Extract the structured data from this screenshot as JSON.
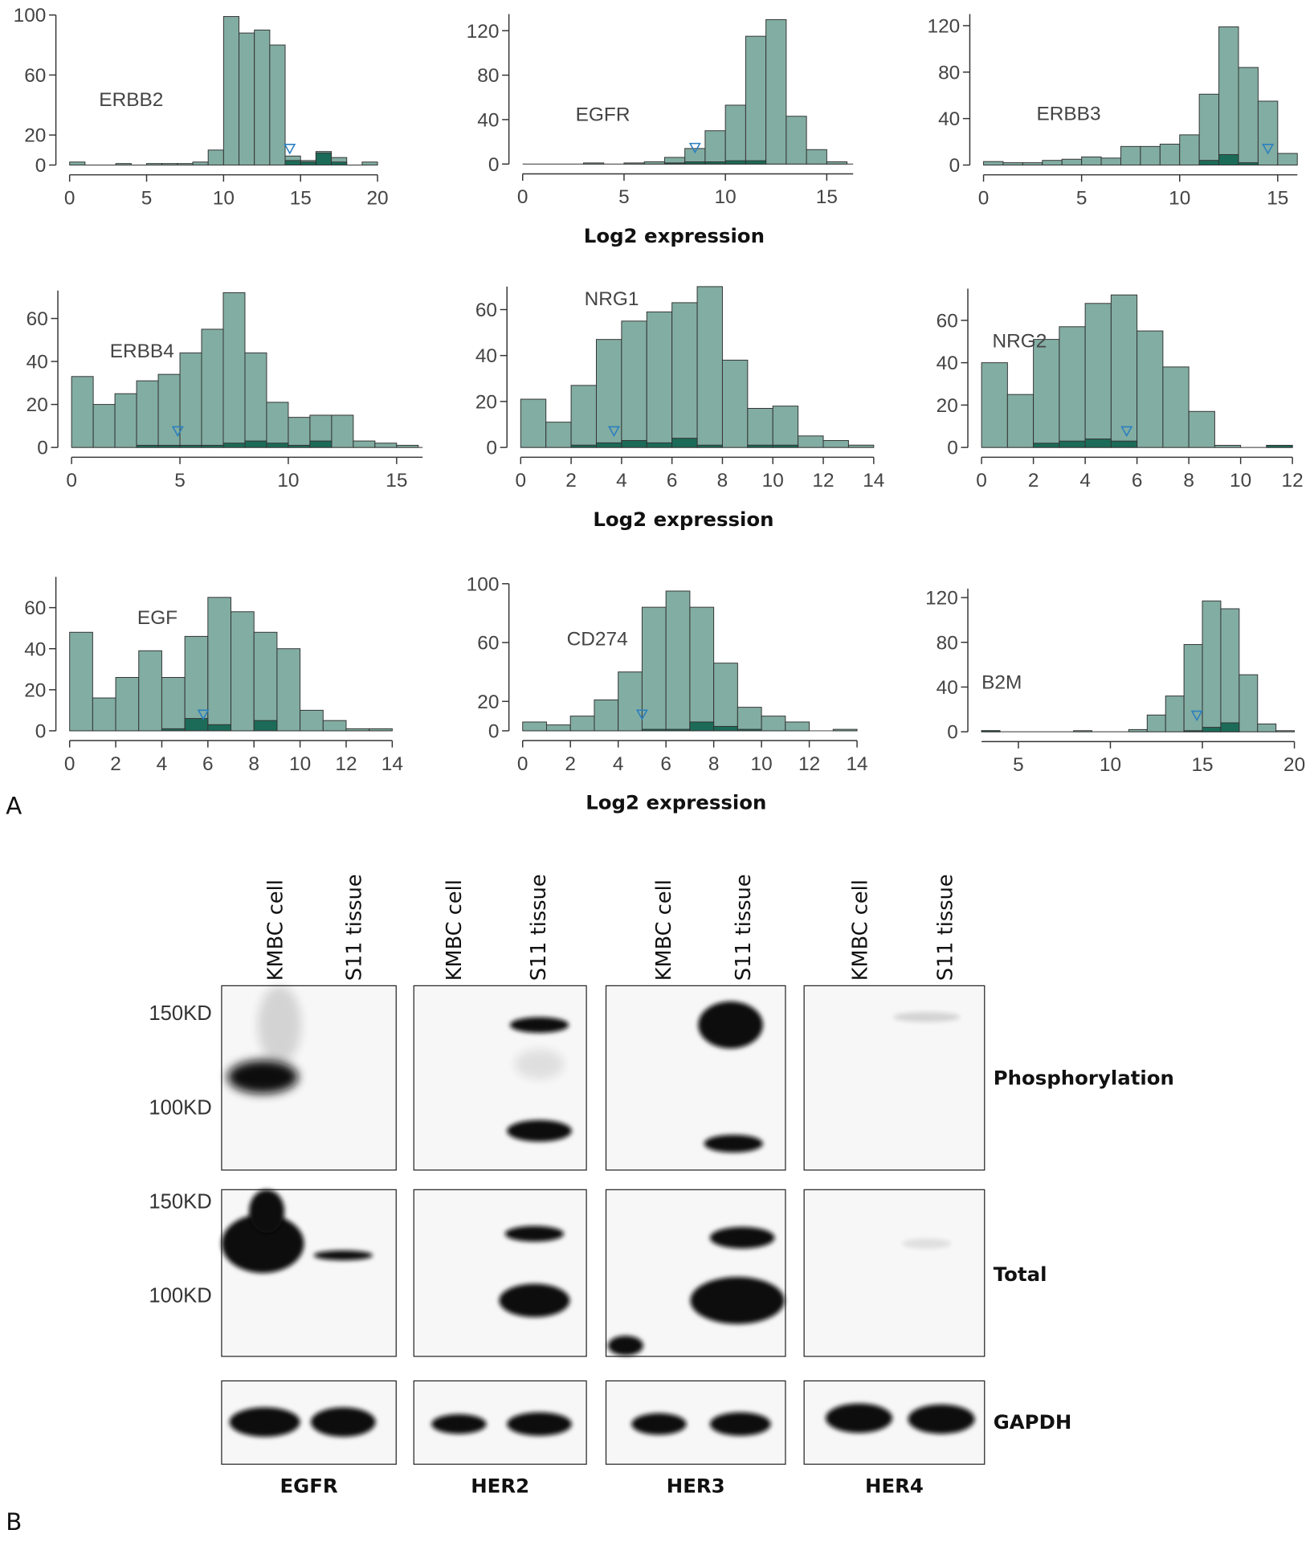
{
  "panels": [
    "A",
    "B"
  ],
  "chart_data": [
    {
      "type": "histogram",
      "label": "ERBB2",
      "bins": [
        0,
        1,
        2,
        3,
        4,
        5,
        6,
        7,
        8,
        9,
        10,
        11,
        12,
        13,
        14,
        15,
        16,
        17,
        18,
        19,
        20
      ],
      "series": [
        {
          "color": "#82ada2",
          "values": [
            2,
            0,
            0,
            1,
            0,
            1,
            1,
            1,
            2,
            10,
            99,
            88,
            90,
            80,
            6,
            3,
            9,
            5,
            0,
            2
          ]
        },
        {
          "color": "#1b6b58",
          "values": [
            0,
            0,
            0,
            0,
            0,
            0,
            0,
            0,
            0,
            0,
            0,
            0,
            0,
            0,
            3,
            2,
            8,
            2,
            0,
            0
          ]
        }
      ],
      "marker_x": 14.3,
      "marker_color": "#2b7fc0",
      "xlim": [
        0,
        20
      ],
      "ylim": [
        0,
        100
      ],
      "xticks": [
        0,
        5,
        10,
        15,
        20
      ],
      "yticks": [
        0,
        20,
        60,
        100
      ]
    },
    {
      "type": "histogram",
      "label": "EGFR",
      "xlabel": "Log2 expression",
      "bins": [
        0,
        1,
        2,
        3,
        4,
        5,
        6,
        7,
        8,
        9,
        10,
        11,
        12,
        13,
        14,
        15,
        16
      ],
      "series": [
        {
          "color": "#82ada2",
          "values": [
            0,
            0,
            0,
            1,
            0,
            1,
            2,
            6,
            14,
            30,
            53,
            115,
            130,
            43,
            13,
            2
          ]
        },
        {
          "color": "#1b6b58",
          "values": [
            0,
            0,
            0,
            0,
            0,
            0,
            0,
            1,
            2,
            2,
            3,
            3,
            0,
            0,
            0,
            0
          ]
        }
      ],
      "marker_x": 8.5,
      "marker_color": "#2b7fc0",
      "xlim": [
        0,
        16.3
      ],
      "ylim": [
        0,
        135
      ],
      "xticks": [
        0,
        5,
        10,
        15
      ],
      "yticks": [
        0,
        40,
        80,
        120
      ]
    },
    {
      "type": "histogram",
      "label": "ERBB3",
      "bins": [
        0,
        1,
        2,
        3,
        4,
        5,
        6,
        7,
        8,
        9,
        10,
        11,
        12,
        13,
        14,
        15,
        16
      ],
      "series": [
        {
          "color": "#82ada2",
          "values": [
            3,
            2,
            2,
            4,
            5,
            7,
            6,
            16,
            16,
            18,
            26,
            61,
            119,
            84,
            55,
            10
          ]
        },
        {
          "color": "#1b6b58",
          "values": [
            0,
            0,
            0,
            0,
            0,
            0,
            0,
            0,
            0,
            0,
            0,
            4,
            9,
            2,
            0,
            0
          ]
        }
      ],
      "marker_x": 14.5,
      "marker_color": "#2b7fc0",
      "xlim": [
        0,
        16
      ],
      "ylim": [
        0,
        130
      ],
      "xticks": [
        0,
        5,
        10,
        15
      ],
      "yticks": [
        0,
        40,
        80,
        120
      ]
    },
    {
      "type": "histogram",
      "label": "ERBB4",
      "bins": [
        0,
        1,
        2,
        3,
        4,
        5,
        6,
        7,
        8,
        9,
        10,
        11,
        12,
        13,
        14,
        15,
        16
      ],
      "series": [
        {
          "color": "#82ada2",
          "values": [
            33,
            20,
            25,
            31,
            34,
            44,
            55,
            72,
            44,
            21,
            14,
            15,
            15,
            3,
            2,
            1
          ]
        },
        {
          "color": "#1b6b58",
          "values": [
            0,
            0,
            0,
            1,
            1,
            1,
            1,
            2,
            3,
            2,
            1,
            3,
            0,
            0,
            0,
            0
          ]
        }
      ],
      "marker_x": 4.9,
      "marker_color": "#2b7fc0",
      "xlim": [
        0,
        16.2
      ],
      "ylim": [
        0,
        73
      ],
      "xticks": [
        0,
        5,
        10,
        15
      ],
      "yticks": [
        0,
        20,
        40,
        60
      ]
    },
    {
      "type": "histogram",
      "label": "NRG1",
      "xlabel": "Log2 expression",
      "bins": [
        0,
        1,
        2,
        3,
        4,
        5,
        6,
        7,
        8,
        9,
        10,
        11,
        12,
        13,
        14
      ],
      "series": [
        {
          "color": "#82ada2",
          "values": [
            21,
            11,
            27,
            47,
            55,
            59,
            63,
            70,
            38,
            17,
            18,
            5,
            3,
            1
          ]
        },
        {
          "color": "#1b6b58",
          "values": [
            0,
            0,
            1,
            2,
            3,
            2,
            4,
            1,
            0,
            1,
            1,
            0,
            0,
            0
          ]
        }
      ],
      "marker_x": 3.7,
      "marker_color": "#2b7fc0",
      "xlim": [
        0,
        14
      ],
      "ylim": [
        0,
        70
      ],
      "xticks": [
        0,
        2,
        4,
        6,
        8,
        10,
        12,
        14
      ],
      "yticks": [
        0,
        20,
        40,
        60
      ]
    },
    {
      "type": "histogram",
      "label": "NRG2",
      "bins": [
        0,
        1,
        2,
        3,
        4,
        5,
        6,
        7,
        8,
        9,
        10,
        11,
        12
      ],
      "series": [
        {
          "color": "#82ada2",
          "values": [
            40,
            25,
            51,
            57,
            68,
            72,
            55,
            38,
            17,
            1,
            0,
            1
          ]
        },
        {
          "color": "#1b6b58",
          "values": [
            0,
            0,
            2,
            3,
            4,
            3,
            0,
            0,
            0,
            0,
            0,
            1
          ]
        }
      ],
      "marker_x": 5.6,
      "marker_color": "#2b7fc0",
      "xlim": [
        0,
        12
      ],
      "ylim": [
        0,
        75
      ],
      "xticks": [
        0,
        2,
        4,
        6,
        8,
        10,
        12
      ],
      "yticks": [
        0,
        20,
        40,
        60
      ]
    },
    {
      "type": "histogram",
      "label": "EGF",
      "bins": [
        0,
        1,
        2,
        3,
        4,
        5,
        6,
        7,
        8,
        9,
        10,
        11,
        12,
        13,
        14
      ],
      "series": [
        {
          "color": "#82ada2",
          "values": [
            48,
            16,
            26,
            39,
            26,
            46,
            65,
            58,
            48,
            40,
            10,
            5,
            1,
            1
          ]
        },
        {
          "color": "#1b6b58",
          "values": [
            0,
            0,
            0,
            0,
            1,
            6,
            3,
            0,
            5,
            0,
            0,
            0,
            0,
            0
          ]
        }
      ],
      "marker_x": 5.8,
      "marker_color": "#2b7fc0",
      "xlim": [
        0,
        14
      ],
      "ylim": [
        0,
        75
      ],
      "xticks": [
        0,
        2,
        4,
        6,
        8,
        10,
        12,
        14
      ],
      "yticks": [
        0,
        20,
        40,
        60
      ]
    },
    {
      "type": "histogram",
      "label": "CD274",
      "xlabel": "Log2 expression",
      "bins": [
        0,
        1,
        2,
        3,
        4,
        5,
        6,
        7,
        8,
        9,
        10,
        11,
        12,
        13,
        14
      ],
      "series": [
        {
          "color": "#82ada2",
          "values": [
            6,
            4,
            10,
            21,
            40,
            84,
            95,
            84,
            46,
            16,
            10,
            6,
            0,
            1
          ]
        },
        {
          "color": "#1b6b58",
          "values": [
            0,
            0,
            0,
            0,
            0,
            1,
            1,
            6,
            3,
            1,
            0,
            0,
            0,
            0
          ]
        }
      ],
      "marker_x": 5.0,
      "marker_color": "#2b7fc0",
      "xlim": [
        0,
        14
      ],
      "ylim": [
        0,
        100
      ],
      "xticks": [
        0,
        2,
        4,
        6,
        8,
        10,
        12,
        14
      ],
      "yticks": [
        0,
        20,
        60,
        100
      ]
    },
    {
      "type": "histogram",
      "label": "B2M",
      "bins": [
        3,
        4,
        5,
        6,
        7,
        8,
        9,
        10,
        11,
        12,
        13,
        14,
        15,
        16,
        17,
        18,
        19,
        20
      ],
      "series": [
        {
          "color": "#82ada2",
          "values": [
            1,
            0,
            0,
            0,
            0,
            1,
            0,
            0,
            2,
            15,
            32,
            78,
            117,
            110,
            51,
            7,
            1
          ]
        },
        {
          "color": "#1b6b58",
          "values": [
            1,
            0,
            0,
            0,
            0,
            0,
            0,
            0,
            0,
            0,
            0,
            1,
            4,
            8,
            0,
            0,
            0
          ]
        }
      ],
      "marker_x": 14.7,
      "marker_color": "#2b7fc0",
      "xlim": [
        3,
        20
      ],
      "ylim": [
        0,
        128
      ],
      "xticks": [
        5,
        10,
        15,
        20
      ],
      "yticks": [
        0,
        40,
        80,
        120
      ]
    }
  ],
  "blot": {
    "groups": [
      "EGFR",
      "HER2",
      "HER3",
      "HER4"
    ],
    "lanes": [
      "KMBC cell",
      "S11 tissue"
    ],
    "rows": [
      "Phosphorylation",
      "Total",
      "GAPDH"
    ],
    "markers": [
      "150KD",
      "100KD"
    ]
  }
}
